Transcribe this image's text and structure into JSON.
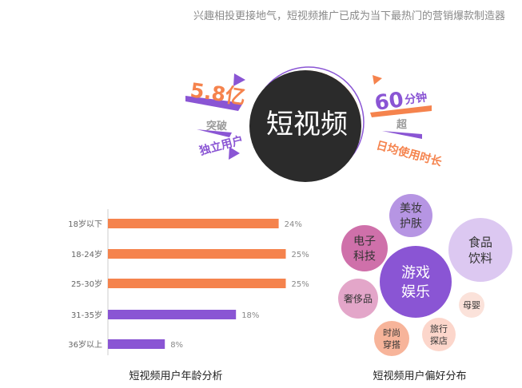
{
  "headline": "兴趣相投更接地气，短视频推广已成为当下最热门的营销爆款制造器",
  "hero": {
    "center_title": "短视频",
    "left_value": "5.8亿",
    "left_verb": "突破",
    "left_label": "独立用户",
    "right_value": "60",
    "right_unit": "分钟",
    "right_verb": "超",
    "right_label": "日均使用时长"
  },
  "colors": {
    "orange": "#f5834d",
    "purple": "#8a55d4",
    "dark": "#2b2b2b",
    "grey_text": "#9a9a9a"
  },
  "chart_data": [
    {
      "type": "bar",
      "orientation": "horizontal",
      "title": "短视频用户年龄分析",
      "categories": [
        "18岁以下",
        "18-24岁",
        "25-30岁",
        "31-35岁",
        "36岁以上"
      ],
      "values": [
        24,
        25,
        25,
        18,
        8
      ],
      "value_labels": [
        "24%",
        "25%",
        "25%",
        "18%",
        "8%"
      ],
      "unit": "%",
      "bar_colors": [
        "#f5834d",
        "#f5834d",
        "#f5834d",
        "#8a55d4",
        "#8a55d4"
      ],
      "xlim": [
        0,
        30
      ]
    },
    {
      "type": "bubble",
      "title": "短视频用户偏好分布",
      "categories": [
        "游戏娱乐",
        "美妆护肤",
        "食品饮料",
        "电子科技",
        "奢侈品",
        "母婴",
        "时尚穿搭",
        "旅行探店"
      ],
      "labels": [
        [
          "游戏",
          "娱乐"
        ],
        [
          "美妆",
          "护肤"
        ],
        [
          "食品",
          "饮料"
        ],
        [
          "电子",
          "科技"
        ],
        [
          "奢侈品"
        ],
        [
          "母婴"
        ],
        [
          "时尚",
          "穿搭"
        ],
        [
          "旅行",
          "探店"
        ]
      ],
      "colors": [
        "#8a55d4",
        "#b695e3",
        "#dcc8f1",
        "#cf70aa",
        "#e3a6c9",
        "#fbe2da",
        "#f7b49a",
        "#fcd6cb"
      ],
      "text_colors": [
        "#ffffff",
        "#333333",
        "#333333",
        "#333333",
        "#333333",
        "#333333",
        "#333333",
        "#333333"
      ]
    }
  ]
}
